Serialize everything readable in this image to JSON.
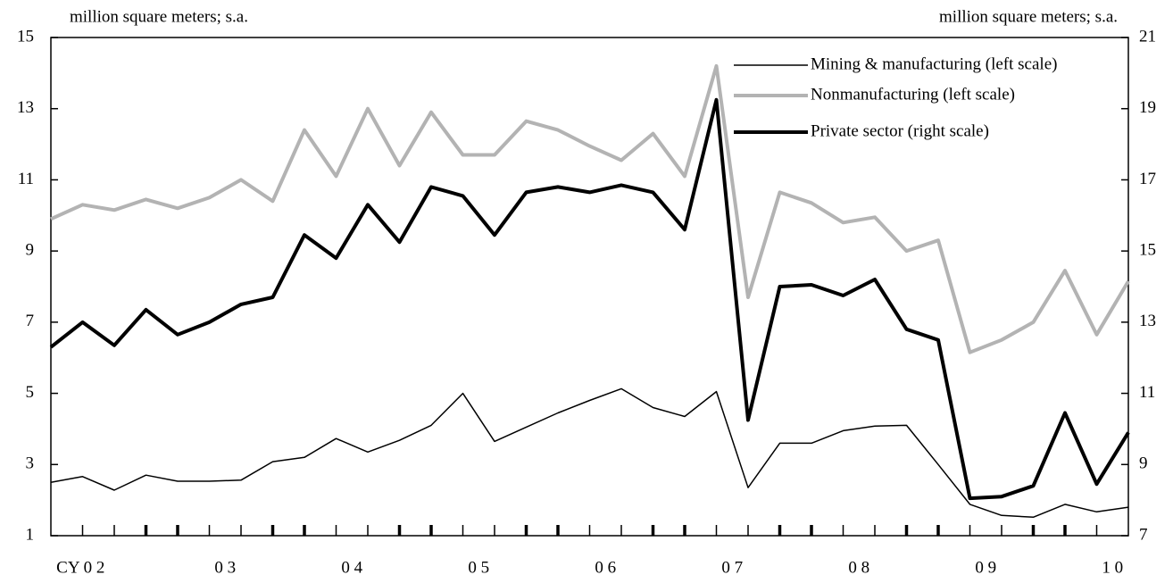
{
  "chart_data": {
    "type": "line",
    "left_unit": "million square meters; s.a.",
    "right_unit": "million square meters; s.a.",
    "x_labels": [
      "CY 0 2",
      "0 3",
      "0 4",
      "0 5",
      "0 6",
      "0 7",
      "0 8",
      "0 9",
      "1 0"
    ],
    "ylim": [
      1,
      15
    ],
    "yticks": [
      1,
      3,
      5,
      7,
      9,
      11,
      13,
      15
    ],
    "y2lim": [
      7,
      21
    ],
    "y2ticks": [
      7,
      9,
      11,
      13,
      15,
      17,
      19,
      21
    ],
    "legend": "top-right",
    "series": [
      {
        "name": "Mining & manufacturing (left scale)",
        "color": "#000000",
        "width": 1.5,
        "values": [
          2.5,
          2.66,
          2.28,
          2.7,
          2.53,
          2.53,
          2.56,
          3.08,
          3.2,
          3.73,
          3.35,
          3.68,
          4.1,
          5.0,
          3.65,
          4.05,
          4.45,
          4.8,
          5.13,
          4.6,
          4.35,
          5.05,
          2.35,
          3.6,
          3.6,
          3.95,
          4.08,
          4.1,
          3.0,
          1.88,
          1.57,
          1.52,
          1.88,
          1.67,
          1.8
        ]
      },
      {
        "name": "Nonmanufacturing (left scale)",
        "color": "#b3b3b3",
        "width": 4,
        "values": [
          9.9,
          10.3,
          10.15,
          10.45,
          10.2,
          10.5,
          11.0,
          10.4,
          12.4,
          11.1,
          13.0,
          11.4,
          12.9,
          11.7,
          11.7,
          12.65,
          12.4,
          11.95,
          11.55,
          12.3,
          11.1,
          14.2,
          7.7,
          10.65,
          10.35,
          9.8,
          9.95,
          9.0,
          9.3,
          6.15,
          6.5,
          7.0,
          8.45,
          6.65,
          8.15
        ]
      },
      {
        "name": "Private sector (right scale)",
        "color": "#000000",
        "width": 4,
        "axis": "y2",
        "values": [
          12.3,
          13.0,
          12.35,
          13.35,
          12.65,
          13.0,
          13.5,
          13.7,
          15.45,
          14.8,
          16.3,
          15.25,
          16.8,
          16.55,
          15.45,
          16.65,
          16.8,
          16.65,
          16.85,
          16.65,
          15.6,
          19.25,
          10.25,
          14.0,
          14.05,
          13.75,
          14.2,
          12.8,
          12.5,
          8.05,
          8.1,
          8.4,
          10.45,
          8.45,
          9.9
        ]
      }
    ]
  }
}
